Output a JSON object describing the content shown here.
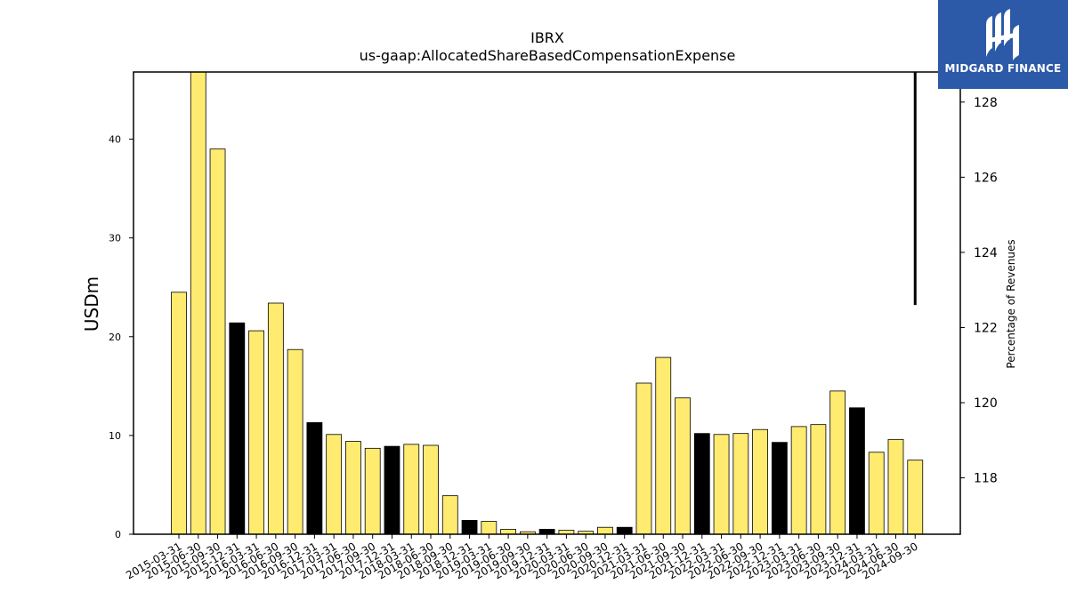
{
  "chart_data": {
    "type": "bar",
    "title": "IBRX",
    "subtitle": "us-gaap:AllocatedShareBasedCompensationExpense",
    "ylabel": "USDm",
    "y2label": "Percentage of Revenues",
    "ylim": [
      0,
      46.8
    ],
    "y2lim": [
      116.5,
      128.8
    ],
    "yticks": [
      0,
      10,
      20,
      30,
      40
    ],
    "y2ticks": [
      118,
      120,
      122,
      124,
      126,
      128
    ],
    "categories": [
      "2015-03-31",
      "2015-06-30",
      "2015-09-30",
      "2015-12-31",
      "2016-03-31",
      "2016-06-30",
      "2016-09-30",
      "2016-12-31",
      "2017-03-31",
      "2017-06-30",
      "2017-09-30",
      "2017-12-31",
      "2018-03-31",
      "2018-06-30",
      "2018-09-30",
      "2018-12-31",
      "2019-03-31",
      "2019-06-30",
      "2019-09-30",
      "2019-12-31",
      "2020-03-31",
      "2020-06-30",
      "2020-09-30",
      "2020-12-31",
      "2021-03-31",
      "2021-06-30",
      "2021-09-30",
      "2021-12-31",
      "2022-03-31",
      "2022-06-30",
      "2022-09-30",
      "2022-12-31",
      "2023-03-31",
      "2023-06-30",
      "2023-09-30",
      "2023-12-31",
      "2024-03-31",
      "2024-06-30",
      "2024-09-30"
    ],
    "values": [
      24.5,
      46.8,
      39.0,
      21.4,
      20.6,
      23.4,
      18.7,
      11.3,
      10.1,
      9.4,
      8.7,
      8.9,
      9.1,
      9.0,
      3.9,
      1.4,
      1.3,
      0.5,
      0.25,
      0.5,
      0.4,
      0.3,
      0.7,
      0.7,
      15.3,
      17.9,
      13.8,
      10.2,
      10.1,
      10.2,
      10.6,
      9.3,
      10.9,
      11.1,
      14.5,
      12.8,
      8.3,
      9.6,
      7.5
    ],
    "highlight": [
      false,
      false,
      false,
      true,
      false,
      false,
      false,
      true,
      false,
      false,
      false,
      true,
      false,
      false,
      false,
      true,
      false,
      false,
      false,
      true,
      false,
      false,
      false,
      true,
      false,
      false,
      false,
      true,
      false,
      false,
      false,
      true,
      false,
      false,
      false,
      true,
      false,
      false,
      false
    ],
    "secondary_line": {
      "x": "2024-09-30",
      "y_from": 122.6,
      "y_to": 128.8
    },
    "colors": {
      "bar": "#ffeb70",
      "highlight": "#000000",
      "edge": "#000000",
      "line": "#000000"
    }
  },
  "brand": {
    "name": "MIDGARD FINANCE",
    "background": "#2c5aa8",
    "logo_icon": "midgard-logo-icon"
  }
}
